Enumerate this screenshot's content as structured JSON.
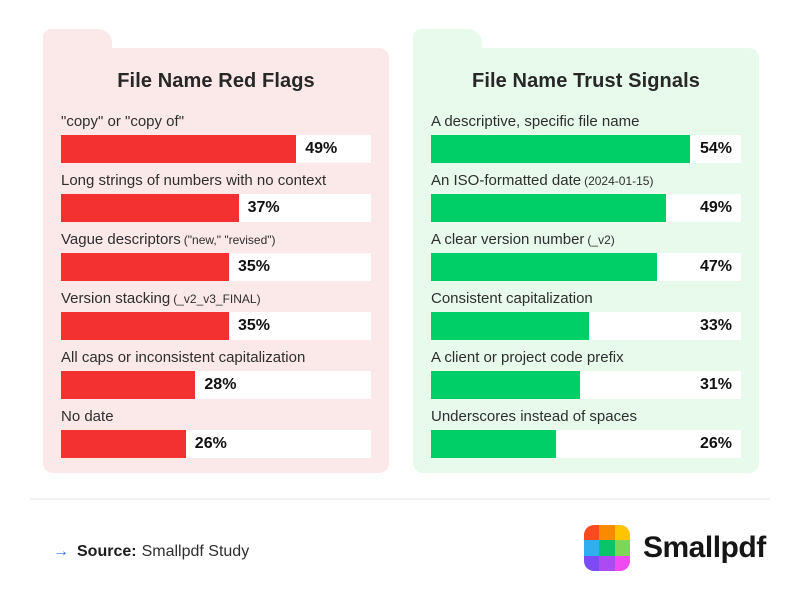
{
  "panels": [
    {
      "id": "red-flags",
      "title": "File Name Red Flags",
      "bg_color": "#FBE9E9",
      "bar_color": "#F23130",
      "value_label_position": "after-bar",
      "items": [
        {
          "label": "\"copy\" or \"copy of\"",
          "note": "",
          "value": 49,
          "display": "49%"
        },
        {
          "label": "Long strings of numbers with no context",
          "note": "",
          "value": 37,
          "display": "37%"
        },
        {
          "label": "Vague descriptors",
          "note": "(\"new,\" \"revised\")",
          "value": 35,
          "display": "35%"
        },
        {
          "label": "Version stacking",
          "note": "(_v2_v3_FINAL)",
          "value": 35,
          "display": "35%"
        },
        {
          "label": "All caps or inconsistent capitalization",
          "note": "",
          "value": 28,
          "display": "28%"
        },
        {
          "label": "No date",
          "note": "",
          "value": 26,
          "display": "26%"
        }
      ]
    },
    {
      "id": "trust-signals",
      "title": "File Name Trust Signals",
      "bg_color": "#E7FAEC",
      "bar_color": "#00CE66",
      "value_label_position": "track-right",
      "items": [
        {
          "label": "A descriptive, specific file name",
          "note": "",
          "value": 54,
          "display": "54%"
        },
        {
          "label": "An ISO-formatted date",
          "note": "(2024-01-15)",
          "value": 49,
          "display": "49%"
        },
        {
          "label": "A clear version number",
          "note": "(_v2)",
          "value": 47,
          "display": "47%"
        },
        {
          "label": "Consistent capitalization",
          "note": "",
          "value": 33,
          "display": "33%"
        },
        {
          "label": "A client or project code prefix",
          "note": "",
          "value": 31,
          "display": "31%"
        },
        {
          "label": "Underscores instead of spaces",
          "note": "",
          "value": 26,
          "display": "26%"
        }
      ]
    }
  ],
  "footer": {
    "arrow": "→",
    "source_label": "Source:",
    "source_value": "Smallpdf Study",
    "brand_name": "Smallpdf",
    "logo_colors": [
      "#FB4A1F",
      "#FC8A00",
      "#FDC500",
      "#2FAEF2",
      "#0AC46A",
      "#7ED657",
      "#7B4CF5",
      "#AC4BF2",
      "#F04AF2"
    ]
  },
  "chart_data": [
    {
      "type": "bar",
      "orientation": "horizontal",
      "title": "File Name Red Flags",
      "categories": [
        "\"copy\" or \"copy of\"",
        "Long strings of numbers with no context",
        "Vague descriptors (\"new,\" \"revised\")",
        "Version stacking (_v2_v3_FINAL)",
        "All caps or inconsistent capitalization",
        "No date"
      ],
      "values": [
        49,
        37,
        35,
        35,
        28,
        26
      ],
      "value_labels": [
        "49%",
        "37%",
        "35%",
        "35%",
        "28%",
        "26%"
      ],
      "unit": "%",
      "bar_color": "#F23130",
      "track_color": "#ffffff",
      "xlim": [
        0,
        64.5
      ],
      "grid": false,
      "legend": false
    },
    {
      "type": "bar",
      "orientation": "horizontal",
      "title": "File Name Trust Signals",
      "categories": [
        "A descriptive, specific file name",
        "An ISO-formatted date (2024-01-15)",
        "A clear version number (_v2)",
        "Consistent capitalization",
        "A client or project code prefix",
        "Underscores instead of spaces"
      ],
      "values": [
        54,
        49,
        47,
        33,
        31,
        26
      ],
      "value_labels": [
        "54%",
        "49%",
        "47%",
        "33%",
        "31%",
        "26%"
      ],
      "unit": "%",
      "bar_color": "#00CE66",
      "track_color": "#ffffff",
      "xlim": [
        0,
        64.5
      ],
      "grid": false,
      "legend": false
    }
  ]
}
